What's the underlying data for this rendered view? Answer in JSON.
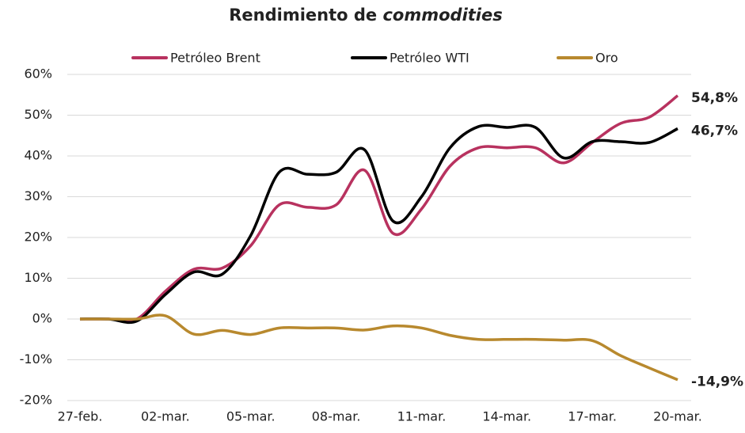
{
  "chart_data": {
    "type": "line",
    "title": {
      "text": "Rendimiento de",
      "emphasis": "commodities"
    },
    "categories": [
      "27-feb.",
      null,
      null,
      "02-mar.",
      null,
      null,
      "05-mar.",
      null,
      null,
      "08-mar.",
      null,
      null,
      "11-mar.",
      null,
      null,
      "14-mar.",
      null,
      null,
      "17-mar.",
      null,
      null,
      "20-mar."
    ],
    "series": [
      {
        "name": "Petróleo Brent",
        "color": "#b8325f",
        "end_label": "54,8%",
        "values": [
          0,
          0,
          0,
          6.8,
          12.2,
          12.5,
          18,
          28,
          27.4,
          28,
          36.5,
          21,
          27,
          37.5,
          42,
          42,
          42,
          38.3,
          43.3,
          48,
          49.5,
          54.8
        ]
      },
      {
        "name": "Petróleo WTI",
        "color": "#000000",
        "end_label": "46,7%",
        "values": [
          0,
          0,
          -0.5,
          6,
          11.5,
          11,
          20.5,
          36,
          35.5,
          36,
          41.5,
          24,
          30,
          42,
          47.2,
          47,
          47,
          39.5,
          43.5,
          43.5,
          43.3,
          46.7
        ]
      },
      {
        "name": "Oro",
        "color": "#b8892e",
        "end_label": "-14,9%",
        "values": [
          0,
          0,
          0,
          0.8,
          -3.7,
          -2.8,
          -3.8,
          -2.2,
          -2.2,
          -2.2,
          -2.7,
          -1.7,
          -2.2,
          -4,
          -5,
          -5,
          -5,
          -5.2,
          -5.3,
          -9,
          -12,
          -14.9
        ]
      }
    ],
    "ylim": [
      -20,
      60
    ],
    "yticks": [
      {
        "value": -20,
        "label": "-20%"
      },
      {
        "value": -10,
        "label": "-10%"
      },
      {
        "value": 0,
        "label": "0%"
      },
      {
        "value": 10,
        "label": "10%"
      },
      {
        "value": 20,
        "label": "20%"
      },
      {
        "value": 30,
        "label": "30%"
      },
      {
        "value": 40,
        "label": "40%"
      },
      {
        "value": 50,
        "label": "50%"
      },
      {
        "value": 60,
        "label": "60%"
      }
    ],
    "grid": true,
    "legend": "top"
  }
}
